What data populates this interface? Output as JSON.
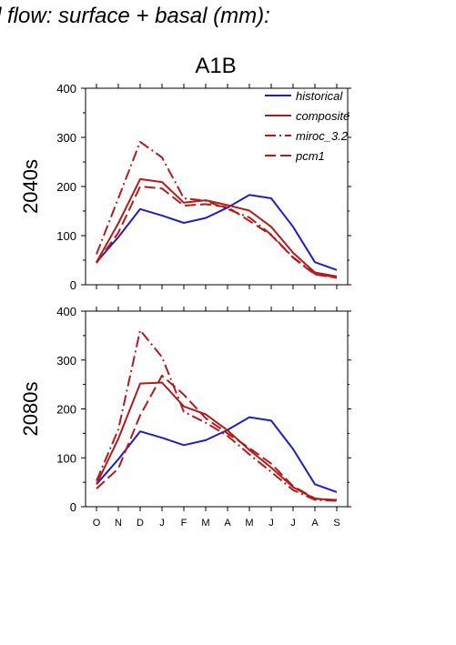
{
  "figure": {
    "title": "d flow: surface + basal (mm):",
    "panel_title": "A1B"
  },
  "colors": {
    "historical": "#1f1fbf",
    "scenario": "#b31b1b"
  },
  "chart_data": [
    {
      "type": "line",
      "row_label": "2040s",
      "categories": [
        "O",
        "N",
        "D",
        "J",
        "F",
        "M",
        "A",
        "M",
        "J",
        "J",
        "A",
        "S"
      ],
      "ylim": [
        0,
        400
      ],
      "yticks": [
        "0",
        "100",
        "200",
        "300",
        "400"
      ],
      "grid": false,
      "legend": "top-right",
      "series": [
        {
          "name": "historical",
          "style": "solid",
          "color": "#1f1fbf",
          "values": [
            46,
            97,
            154,
            141,
            126,
            136,
            157,
            183,
            176,
            118,
            46,
            30
          ]
        },
        {
          "name": "composite",
          "style": "solid",
          "color": "#b31b1b",
          "values": [
            46,
            125,
            215,
            209,
            167,
            172,
            162,
            151,
            118,
            65,
            25,
            17
          ]
        },
        {
          "name": "miroc_3.2",
          "style": "dashdot",
          "color": "#b31b1b",
          "values": [
            62,
            176,
            291,
            259,
            176,
            171,
            154,
            137,
            102,
            56,
            22,
            15
          ]
        },
        {
          "name": "pcm1",
          "style": "dashed",
          "color": "#b31b1b",
          "values": [
            44,
            106,
            200,
            196,
            161,
            164,
            158,
            130,
            101,
            55,
            21,
            14
          ]
        }
      ]
    },
    {
      "type": "line",
      "row_label": "2080s",
      "categories": [
        "O",
        "N",
        "D",
        "J",
        "F",
        "M",
        "A",
        "M",
        "J",
        "J",
        "A",
        "S"
      ],
      "ylim": [
        0,
        400
      ],
      "yticks": [
        "0",
        "100",
        "200",
        "300",
        "400"
      ],
      "grid": false,
      "legend": "none",
      "series": [
        {
          "name": "historical",
          "style": "solid",
          "color": "#1f1fbf",
          "values": [
            46,
            97,
            154,
            141,
            126,
            136,
            157,
            183,
            176,
            118,
            46,
            30
          ]
        },
        {
          "name": "composite",
          "style": "solid",
          "color": "#b31b1b",
          "values": [
            46,
            139,
            252,
            254,
            205,
            189,
            156,
            116,
            80,
            40,
            16,
            14
          ]
        },
        {
          "name": "miroc_3.2",
          "style": "dashdot",
          "color": "#b31b1b",
          "values": [
            53,
            158,
            361,
            306,
            194,
            172,
            145,
            107,
            71,
            34,
            14,
            12
          ]
        },
        {
          "name": "pcm1",
          "style": "dashed",
          "color": "#b31b1b",
          "values": [
            37,
            78,
            187,
            268,
            229,
            181,
            150,
            120,
            88,
            42,
            17,
            13
          ]
        }
      ]
    }
  ]
}
